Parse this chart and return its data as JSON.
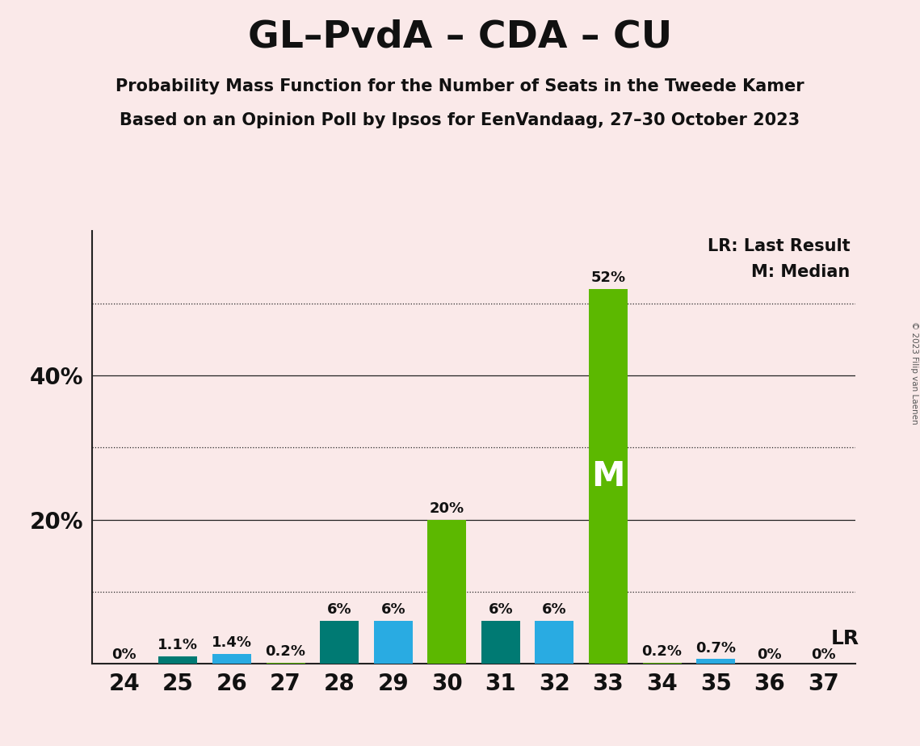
{
  "title": "GL–PvdA – CDA – CU",
  "subtitle1": "Probability Mass Function for the Number of Seats in the Tweede Kamer",
  "subtitle2": "Based on an Opinion Poll by Ipsos for EenVandaag, 27–30 October 2023",
  "copyright": "© 2023 Filip van Laenen",
  "background_color": "#fae9e9",
  "seats": [
    24,
    25,
    26,
    27,
    28,
    29,
    30,
    31,
    32,
    33,
    34,
    35,
    36,
    37
  ],
  "values": [
    0.0,
    1.1,
    1.4,
    0.2,
    6.0,
    6.0,
    20.0,
    6.0,
    6.0,
    52.0,
    0.2,
    0.7,
    0.0,
    0.0
  ],
  "labels": [
    "0%",
    "1.1%",
    "1.4%",
    "0.2%",
    "6%",
    "6%",
    "20%",
    "6%",
    "6%",
    "52%",
    "0.2%",
    "0.7%",
    "0%",
    "0%"
  ],
  "color_teal": "#007a73",
  "color_blue": "#29abe2",
  "color_green": "#5cb800",
  "bar_color_pattern": [
    "green",
    "teal",
    "blue",
    "green",
    "teal",
    "blue",
    "green",
    "teal",
    "blue",
    "green",
    "green",
    "blue",
    "green",
    "green"
  ],
  "median_seat": 33,
  "last_result_seat": 37,
  "legend_lr": "LR: Last Result",
  "legend_m": "M: Median",
  "lr_label": "LR",
  "dotted_yticks": [
    10,
    30,
    50
  ],
  "solid_yticks": [
    20,
    40
  ],
  "ylim": [
    0,
    60
  ],
  "title_fontsize": 34,
  "subtitle_fontsize": 15,
  "axis_fontsize": 20,
  "bar_label_fontsize": 13,
  "legend_fontsize": 15
}
